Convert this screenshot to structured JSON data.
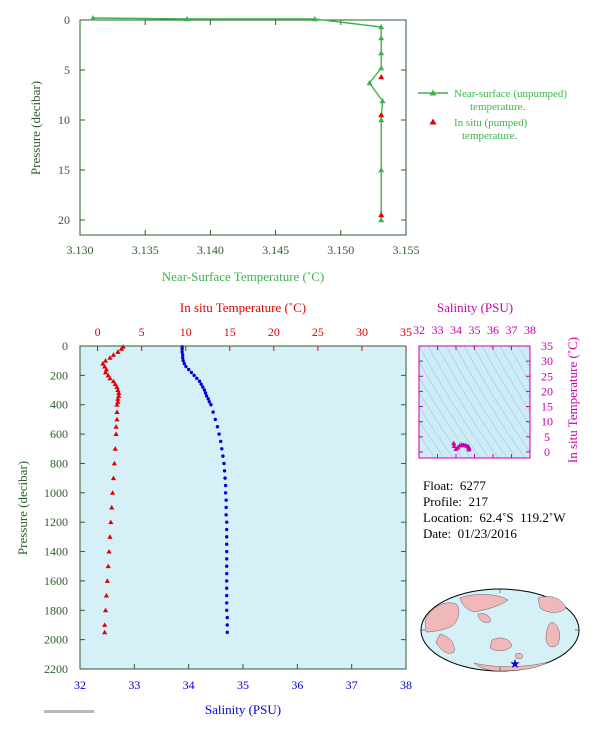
{
  "colors": {
    "green": "#3cb44b",
    "red": "#e00000",
    "blue": "#0000dd",
    "magenta": "#cc00aa",
    "axis_text": "#2e5e2e",
    "panel_bg": "#d6f0f7",
    "ts_bg": "#ccecf7",
    "land": "#f0b8b8",
    "ocean": "#d6f0f7"
  },
  "chart_data": [
    {
      "type": "line",
      "id": "near-surface",
      "title": "",
      "xlabel": "Near-Surface Temperature (˚C)",
      "ylabel": "Pressure (decibar)",
      "xlim": [
        3.13,
        3.155
      ],
      "ylim": [
        0,
        21.5
      ],
      "y_inverted": true,
      "xticks": [
        "3.130",
        "3.135",
        "3.140",
        "3.145",
        "3.150",
        "3.155"
      ],
      "yticks": [
        "0",
        "5",
        "10",
        "15",
        "20"
      ],
      "legend_position": "right",
      "series": [
        {
          "name": "Near-surface (unpumped) temperature.",
          "marker": "triangle-line",
          "x": [
            3.131,
            3.1382,
            3.148,
            3.1531,
            3.1531,
            3.1531,
            3.1531,
            3.1522,
            3.1532,
            3.1531,
            3.1531,
            3.1531
          ],
          "y": [
            -0.2,
            -0.1,
            -0.1,
            0.7,
            1.8,
            3.3,
            4.8,
            6.3,
            8.1,
            10.0,
            15.0,
            20.0
          ]
        },
        {
          "name": "In situ (pumped) temperature.",
          "marker": "triangle",
          "x": [
            3.1531,
            3.1531,
            3.1531
          ],
          "y": [
            5.7,
            9.5,
            19.5
          ]
        }
      ]
    },
    {
      "type": "scatter",
      "id": "profile",
      "title": "",
      "xlabel_top": "In situ Temperature (˚C)",
      "xlabel_bottom": "Salinity (PSU)",
      "ylabel": "Pressure (decibar)",
      "temp_lim": [
        -2,
        35
      ],
      "sal_lim": [
        32,
        38
      ],
      "ylim": [
        0,
        2200
      ],
      "y_inverted": true,
      "temp_ticks": [
        "0",
        "5",
        "10",
        "15",
        "20",
        "25",
        "30",
        "35"
      ],
      "sal_ticks": [
        "32",
        "33",
        "34",
        "35",
        "36",
        "37",
        "38"
      ],
      "yticks": [
        "0",
        "200",
        "400",
        "600",
        "800",
        "1000",
        "1200",
        "1400",
        "1600",
        "1800",
        "2000",
        "2200"
      ],
      "series": [
        {
          "name": "In situ Temperature",
          "marker": "triangle",
          "pressure": [
            5,
            20,
            40,
            60,
            80,
            100,
            120,
            140,
            160,
            180,
            200,
            220,
            240,
            260,
            280,
            300,
            320,
            340,
            360,
            380,
            400,
            450,
            500,
            550,
            600,
            700,
            800,
            900,
            1000,
            1100,
            1200,
            1300,
            1400,
            1500,
            1600,
            1700,
            1800,
            1900,
            1950
          ],
          "values": [
            2.9,
            2.7,
            2.3,
            1.8,
            1.4,
            0.9,
            0.6,
            0.8,
            1.0,
            0.9,
            1.2,
            1.4,
            1.8,
            2.0,
            2.2,
            2.3,
            2.4,
            2.4,
            2.3,
            2.3,
            2.2,
            2.2,
            2.2,
            2.1,
            2.1,
            2.0,
            1.9,
            1.8,
            1.7,
            1.6,
            1.5,
            1.4,
            1.3,
            1.2,
            1.1,
            1.0,
            0.9,
            0.8,
            0.8
          ]
        },
        {
          "name": "Salinity",
          "marker": "dot",
          "pressure": [
            5,
            20,
            40,
            60,
            80,
            100,
            120,
            140,
            160,
            180,
            200,
            220,
            240,
            260,
            280,
            300,
            320,
            340,
            360,
            380,
            400,
            450,
            500,
            550,
            600,
            650,
            700,
            750,
            800,
            850,
            900,
            950,
            1000,
            1050,
            1100,
            1150,
            1200,
            1250,
            1300,
            1350,
            1400,
            1450,
            1500,
            1550,
            1600,
            1650,
            1700,
            1750,
            1800,
            1850,
            1900,
            1950
          ],
          "values": [
            33.88,
            33.88,
            33.88,
            33.89,
            33.89,
            33.9,
            33.92,
            33.95,
            34.0,
            34.05,
            34.1,
            34.15,
            34.2,
            34.23,
            34.26,
            34.29,
            34.31,
            34.33,
            34.36,
            34.38,
            34.41,
            34.45,
            34.49,
            34.53,
            34.56,
            34.59,
            34.61,
            34.63,
            34.65,
            34.66,
            34.67,
            34.68,
            34.68,
            34.69,
            34.69,
            34.69,
            34.7,
            34.7,
            34.7,
            34.7,
            34.7,
            34.7,
            34.7,
            34.7,
            34.7,
            34.7,
            34.7,
            34.7,
            34.7,
            34.71,
            34.71,
            34.71
          ]
        }
      ]
    },
    {
      "type": "scatter",
      "id": "ts-diagram",
      "title": "",
      "xlabel": "Salinity (PSU)",
      "ylabel": "In situ Temperature (˚C)",
      "xlim": [
        32,
        38
      ],
      "ylim": [
        -2,
        35
      ],
      "xticks": [
        "32",
        "33",
        "34",
        "35",
        "36",
        "37",
        "38"
      ],
      "yticks": [
        "0",
        "5",
        "10",
        "15",
        "20",
        "25",
        "30",
        "35"
      ],
      "series": [
        {
          "name": "T-S",
          "marker": "triangle",
          "x": [
            33.88,
            33.9,
            34.0,
            34.1,
            34.2,
            34.3,
            34.4,
            34.5,
            34.6,
            34.68,
            34.7,
            34.7
          ],
          "y": [
            2.9,
            2.0,
            1.0,
            1.5,
            2.1,
            2.4,
            2.3,
            2.2,
            2.0,
            1.7,
            1.3,
            0.8
          ]
        }
      ]
    }
  ],
  "legend": {
    "unpumped_line1": "Near-surface (unpumped)",
    "unpumped_line2": "temperature.",
    "pumped_line1": "In situ (pumped)",
    "pumped_line2": "temperature."
  },
  "info": {
    "float": "Float:  6277",
    "profile": "Profile:  217",
    "location": "Location:  62.4˚S  119.2˚W",
    "date": "Date:  01/23/2016"
  },
  "map": {
    "location_marker": "star-icon",
    "lat": -62.4,
    "lon": -119.2
  }
}
